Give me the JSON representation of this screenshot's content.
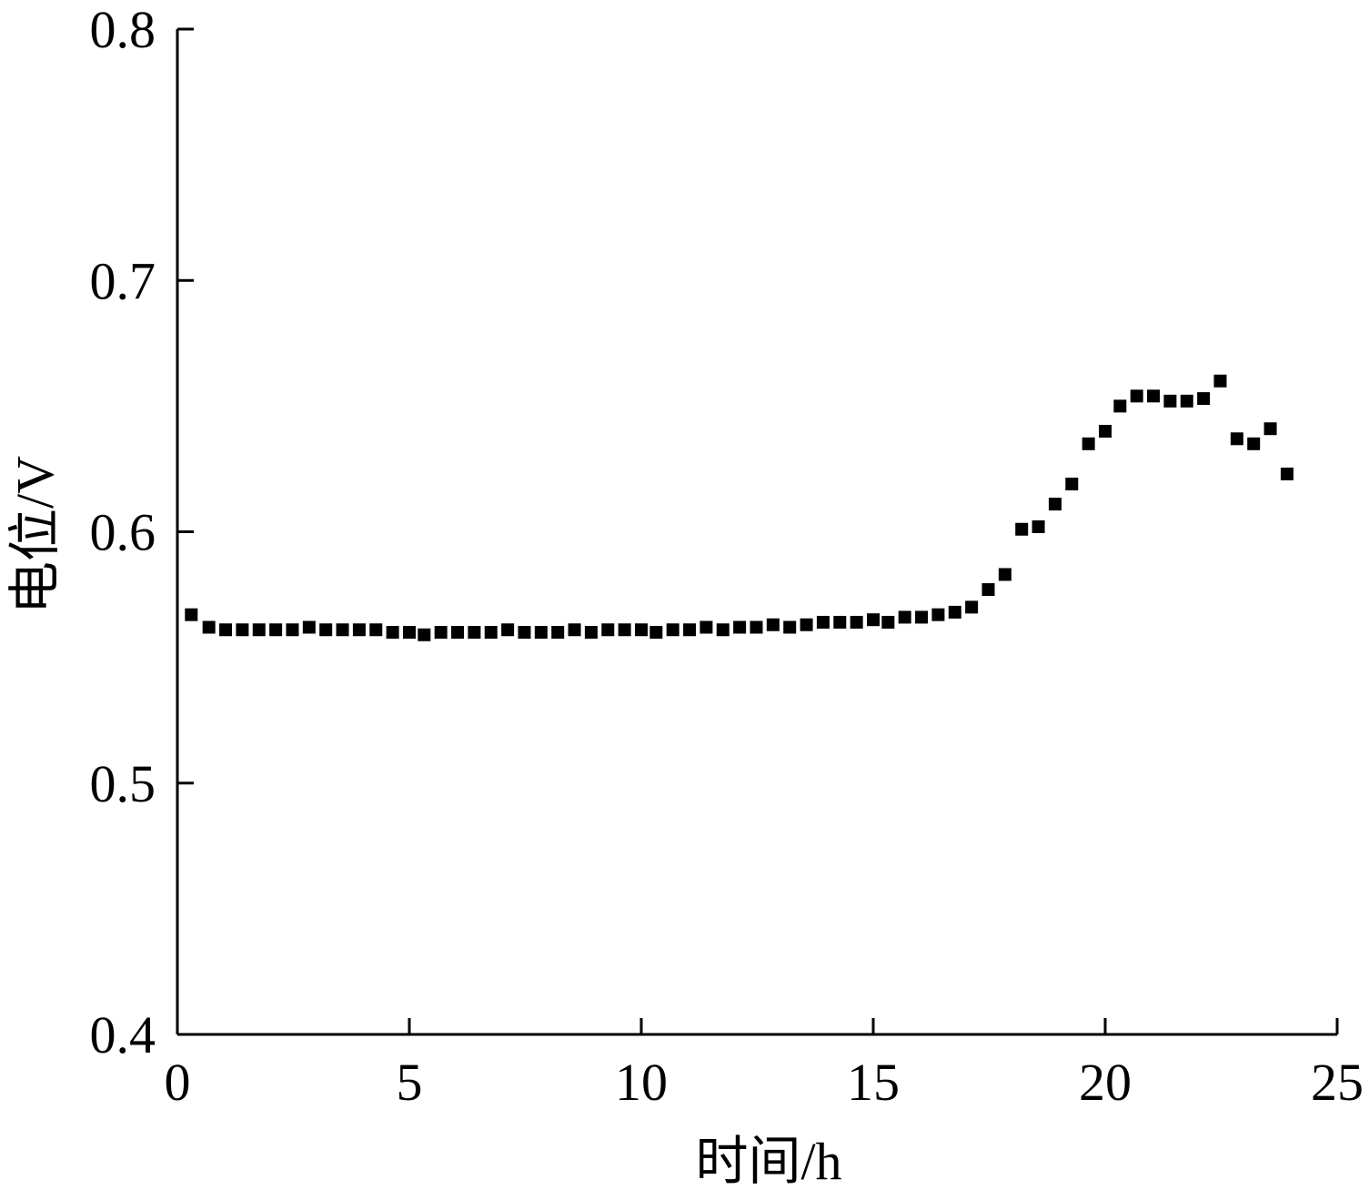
{
  "chart_data": {
    "type": "scatter",
    "title": "",
    "xlabel": "时间/h",
    "ylabel": "电位/V",
    "xlim": [
      0,
      25
    ],
    "ylim": [
      0.4,
      0.8
    ],
    "xticks": [
      "0",
      "5",
      "10",
      "15",
      "20",
      "25"
    ],
    "yticks": [
      "0.4",
      "0.5",
      "0.6",
      "0.7",
      "0.8"
    ],
    "grid": false,
    "legend": "none",
    "marker": "square",
    "marker_color": "#000000",
    "series": [
      {
        "x": [
          0.3,
          0.68,
          1.04,
          1.4,
          1.76,
          2.12,
          2.48,
          2.84,
          3.2,
          3.56,
          3.92,
          4.28,
          4.64,
          5.0,
          5.32,
          5.68,
          6.04,
          6.4,
          6.76,
          7.12,
          7.48,
          7.84,
          8.2,
          8.56,
          8.92,
          9.28,
          9.64,
          10.0,
          10.32,
          10.68,
          11.04,
          11.4,
          11.76,
          12.12,
          12.48,
          12.84,
          13.2,
          13.56,
          13.92,
          14.28,
          14.64,
          15.0,
          15.32,
          15.68,
          16.04,
          16.4,
          16.76,
          17.12,
          17.48,
          17.84,
          18.2,
          18.56,
          18.92,
          19.28,
          19.64,
          20.0,
          20.32,
          20.68,
          21.04,
          21.4,
          21.76,
          22.12,
          22.48,
          22.84,
          23.2,
          23.56,
          23.92
        ],
        "y": [
          0.567,
          0.562,
          0.561,
          0.561,
          0.561,
          0.561,
          0.561,
          0.562,
          0.561,
          0.561,
          0.561,
          0.561,
          0.56,
          0.56,
          0.559,
          0.56,
          0.56,
          0.56,
          0.56,
          0.561,
          0.56,
          0.56,
          0.56,
          0.561,
          0.56,
          0.561,
          0.561,
          0.561,
          0.56,
          0.561,
          0.561,
          0.562,
          0.561,
          0.562,
          0.562,
          0.563,
          0.562,
          0.563,
          0.564,
          0.564,
          0.564,
          0.565,
          0.564,
          0.566,
          0.566,
          0.567,
          0.568,
          0.57,
          0.577,
          0.583,
          0.601,
          0.602,
          0.611,
          0.619,
          0.635,
          0.64,
          0.65,
          0.654,
          0.654,
          0.652,
          0.652,
          0.653,
          0.66,
          0.637,
          0.635,
          0.641,
          0.623
        ]
      }
    ]
  }
}
